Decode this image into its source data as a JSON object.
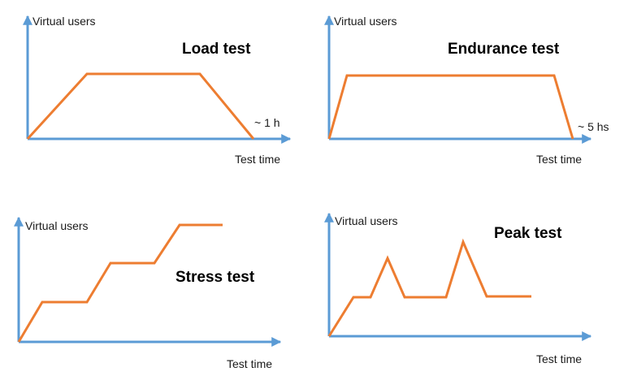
{
  "colors": {
    "axis": "#5b9bd5",
    "profile": "#ed7d31",
    "text": "#1a1a1a"
  },
  "diagrams": [
    {
      "id": "load",
      "title": "Load test",
      "y_axis_label": "Virtual users",
      "x_axis_label": "Test time",
      "annotation": "~ 1 h",
      "profile_shape": "ramp up, hold, ramp down"
    },
    {
      "id": "endurance",
      "title": "Endurance test",
      "y_axis_label": "Virtual users",
      "x_axis_label": "Test time",
      "annotation": "~ 5 hs",
      "profile_shape": "fast ramp up, long hold, fast ramp down"
    },
    {
      "id": "stress",
      "title": "Stress test",
      "y_axis_label": "Virtual users",
      "x_axis_label": "Test time",
      "annotation": "",
      "profile_shape": "stepwise increase"
    },
    {
      "id": "peak",
      "title": "Peak test",
      "y_axis_label": "Virtual users",
      "x_axis_label": "Test time",
      "annotation": "",
      "profile_shape": "baseline with two spikes"
    }
  ]
}
